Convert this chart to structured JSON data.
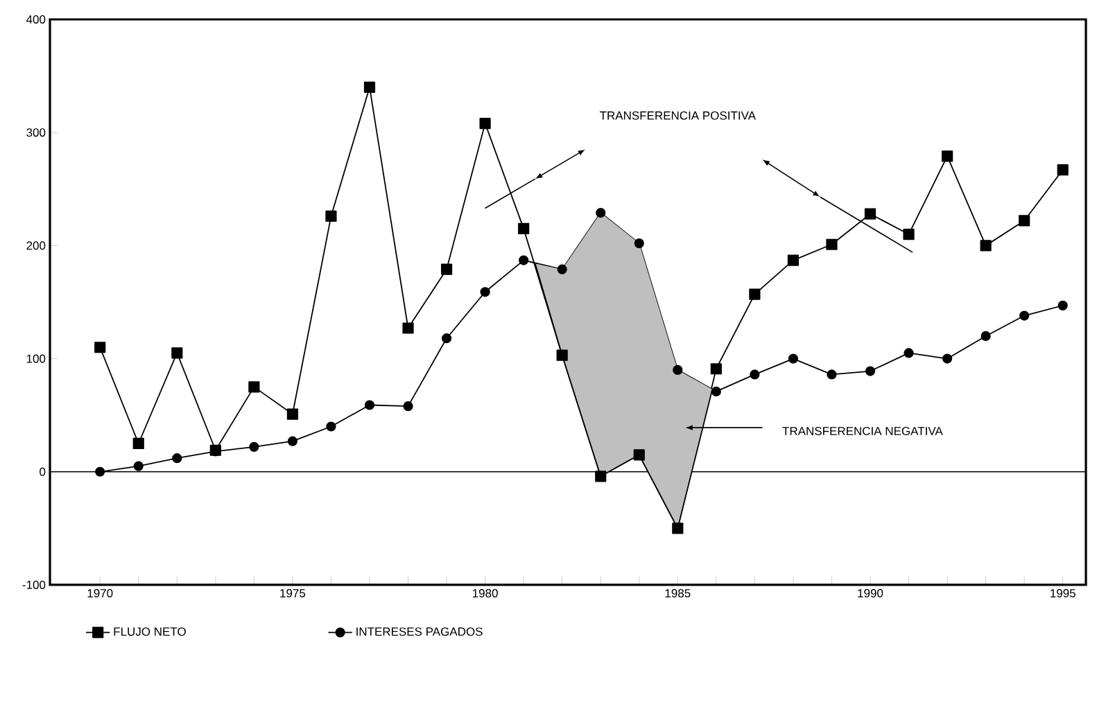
{
  "chart_data": {
    "type": "line",
    "x": [
      1970,
      1971,
      1972,
      1973,
      1974,
      1975,
      1976,
      1977,
      1978,
      1979,
      1980,
      1981,
      1982,
      1983,
      1984,
      1985,
      1986,
      1987,
      1988,
      1989,
      1990,
      1991,
      1992,
      1993,
      1994,
      1995
    ],
    "series": [
      {
        "name": "FLUJO NETO",
        "color": "#000000",
        "marker": "square",
        "values": [
          110,
          25,
          105,
          19,
          75,
          51,
          226,
          340,
          127,
          179,
          308,
          215,
          103,
          -4,
          15,
          -50,
          91,
          157,
          187,
          201,
          228,
          210,
          279,
          200,
          222,
          267
        ]
      },
      {
        "name": "INTERESES PAGADOS",
        "color": "#000000",
        "marker": "circle",
        "values": [
          0,
          5,
          12,
          18,
          22,
          27,
          40,
          59,
          58,
          118,
          159,
          187,
          179,
          229,
          202,
          90,
          71,
          86,
          100,
          86,
          89,
          105,
          100,
          120,
          138,
          147
        ]
      },
      {
        "color": "#000000",
        "marker": "none",
        "x": [
          1981.3,
          1982,
          1983,
          1984,
          1985,
          1985.9
        ],
        "values": [
          184,
          103,
          -4,
          15,
          -50,
          73
        ],
        "lower": [
          184,
          103,
          -4,
          15,
          -50,
          73
        ],
        "upper": [
          184,
          179,
          229,
          202,
          90,
          73
        ]
      }
    ],
    "xlim": [
      1968.7,
      1995.6
    ],
    "ylim": [
      -100,
      400
    ],
    "xticks": [
      1970,
      {
        "value": 1971,
        "label": null
      },
      {
        "value": 1972,
        "label": null
      },
      {
        "value": 1973,
        "label": null
      },
      {
        "value": 1974,
        "label": null
      },
      1975,
      {
        "value": 1976,
        "label": null
      },
      {
        "value": 1977,
        "label": null
      },
      {
        "value": 1978,
        "label": null
      },
      {
        "value": 1979,
        "label": null
      },
      1980,
      {
        "value": 1981,
        "label": null
      },
      {
        "value": 1982,
        "label": null
      },
      {
        "value": 1983,
        "label": null
      },
      {
        "value": 1984,
        "label": null
      },
      1985,
      {
        "value": 1986,
        "label": null
      },
      {
        "value": 1987,
        "label": null
      },
      {
        "value": 1988,
        "label": null
      },
      {
        "value": 1989,
        "label": null
      },
      1990,
      {
        "value": 1991,
        "label": null
      },
      {
        "value": 1992,
        "label": null
      },
      {
        "value": 1993,
        "label": null
      },
      {
        "value": 1994,
        "label": null
      },
      1995
    ],
    "yticks": [
      -100,
      0,
      100,
      200,
      300,
      400
    ],
    "ref_lines": [
      {
        "axis": "y",
        "value": 0,
        "color": "#000000"
      }
    ],
    "annotations": [
      "TRANSFERENCIA POSITIVA",
      "TRANSFERENCIA NEGATIVA"
    ],
    "line_style": "solid",
    "legend": "bottom",
    "grid": false
  }
}
